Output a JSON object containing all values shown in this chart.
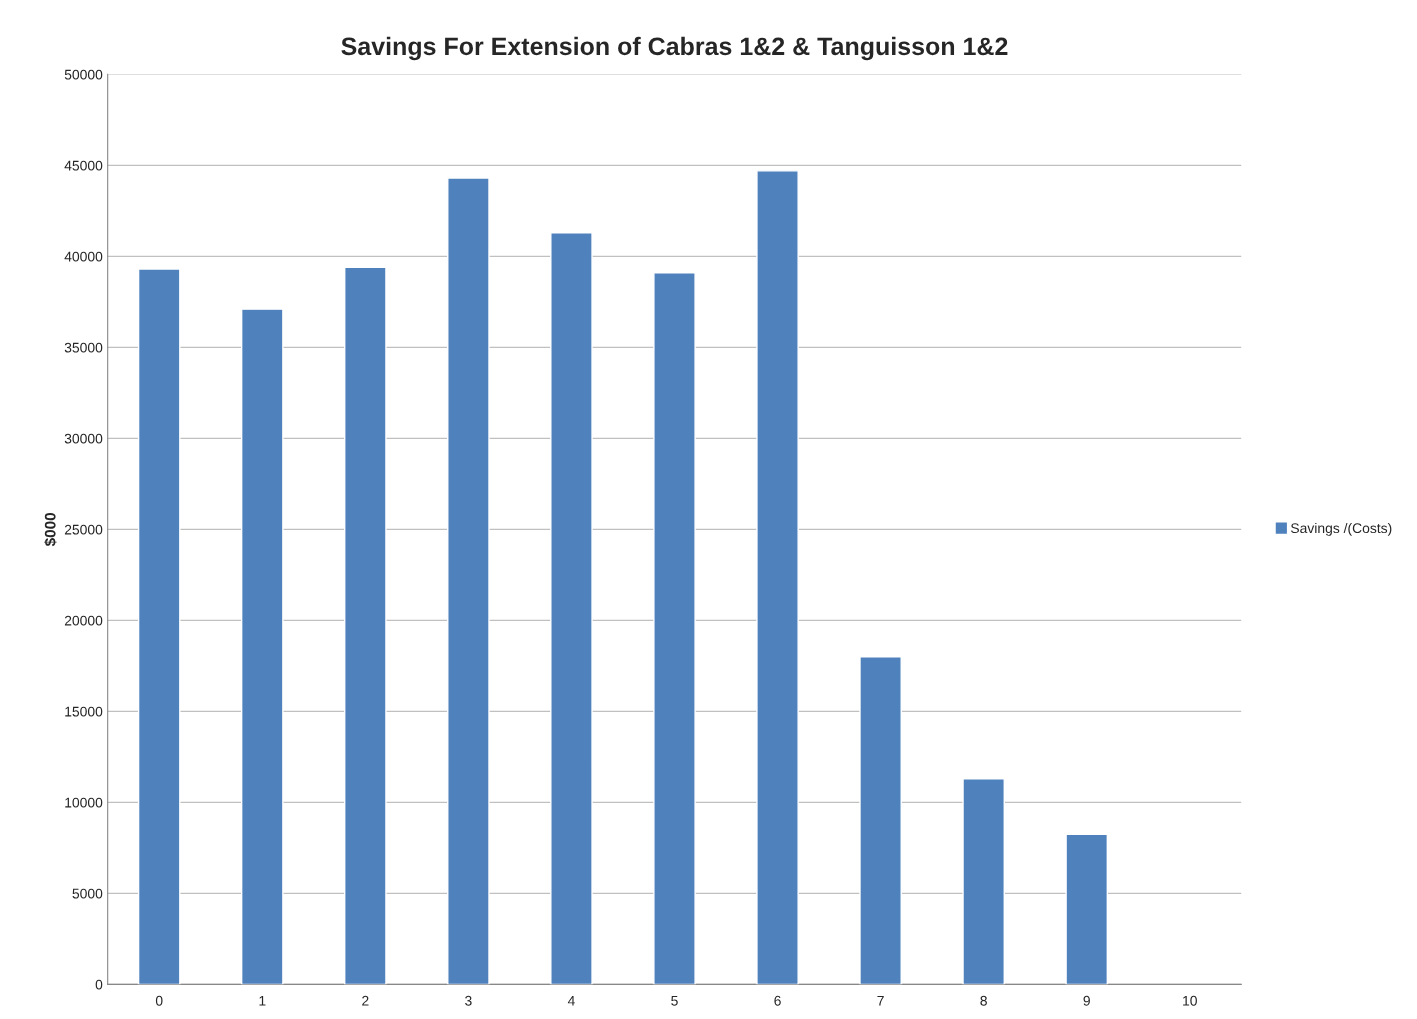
{
  "chart_data": {
    "type": "bar",
    "title": "Savings For Extension of Cabras 1&2 & Tanguisson 1&2",
    "ylabel": "$000",
    "categories": [
      "0",
      "1",
      "2",
      "3",
      "4",
      "5",
      "6",
      "7",
      "8",
      "9",
      "10"
    ],
    "series": [
      {
        "name": "Savings /(Costs)",
        "color": "#4f81bd",
        "values": [
          39300,
          37100,
          39400,
          44300,
          41300,
          39100,
          44700,
          18000,
          11300,
          8250,
          null
        ]
      }
    ],
    "ylim": [
      0,
      50000
    ],
    "yticks": [
      0,
      5000,
      10000,
      15000,
      20000,
      25000,
      30000,
      35000,
      40000,
      45000,
      50000
    ],
    "grid": "y",
    "legend": "right"
  }
}
